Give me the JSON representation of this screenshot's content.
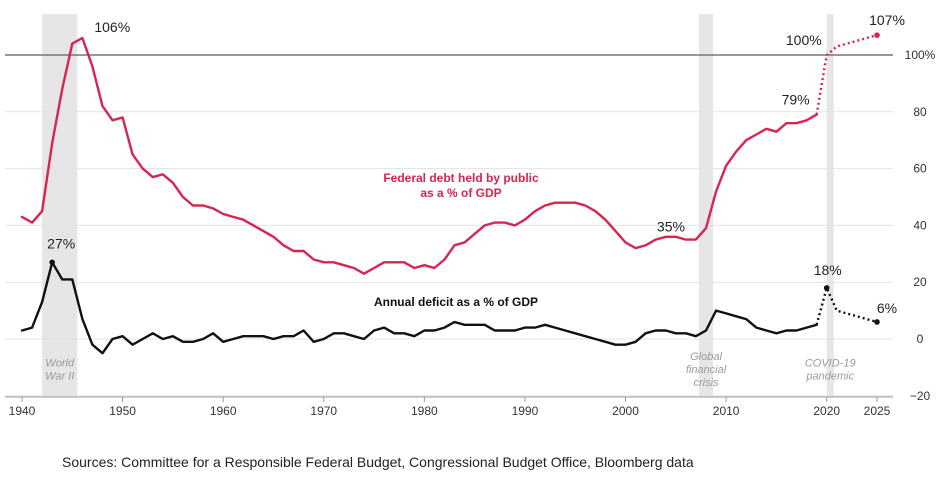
{
  "chart_data": {
    "type": "line",
    "x_range": [
      1940,
      2025
    ],
    "ylim": [
      -20,
      107
    ],
    "y_ticks": [
      -20,
      0,
      20,
      40,
      60,
      80,
      100
    ],
    "y_tick_labels": [
      "−20",
      "0",
      "20",
      "40",
      "60",
      "80",
      "100%"
    ],
    "x_ticks": [
      1940,
      1950,
      1960,
      1970,
      1980,
      1990,
      2000,
      2010,
      2020,
      2025
    ],
    "x_tick_labels": [
      "1940",
      "1950",
      "1960",
      "1970",
      "1980",
      "1990",
      "2000",
      "2010",
      "2020",
      "2025"
    ],
    "reference_line": 100,
    "shaded_periods": [
      {
        "start": 1942,
        "end": 1945.5,
        "label": [
          "World",
          "War II"
        ]
      },
      {
        "start": 2007.3,
        "end": 2008.7,
        "label": [
          "Global",
          "financial",
          "crisis"
        ]
      },
      {
        "start": 2020,
        "end": 2020.7,
        "label": [
          "COVID-19",
          "pandemic"
        ]
      }
    ],
    "series": [
      {
        "name": "Federal debt held by public as a % of GDP",
        "label_lines": [
          "Federal debt held by public",
          "as a % of GDP"
        ],
        "color": "#d6254f",
        "x": [
          1940,
          1941,
          1942,
          1943,
          1944,
          1945,
          1946,
          1947,
          1948,
          1949,
          1950,
          1951,
          1952,
          1953,
          1954,
          1955,
          1956,
          1957,
          1958,
          1959,
          1960,
          1961,
          1962,
          1963,
          1964,
          1965,
          1966,
          1967,
          1968,
          1969,
          1970,
          1971,
          1972,
          1973,
          1974,
          1975,
          1976,
          1977,
          1978,
          1979,
          1980,
          1981,
          1982,
          1983,
          1984,
          1985,
          1986,
          1987,
          1988,
          1989,
          1990,
          1991,
          1992,
          1993,
          1994,
          1995,
          1996,
          1997,
          1998,
          1999,
          2000,
          2001,
          2002,
          2003,
          2004,
          2005,
          2006,
          2007,
          2008,
          2009,
          2010,
          2011,
          2012,
          2013,
          2014,
          2015,
          2016,
          2017,
          2018,
          2019
        ],
        "values": [
          43,
          41,
          45,
          69,
          88,
          104,
          106,
          96,
          82,
          77,
          78,
          65,
          60,
          57,
          58,
          55,
          50,
          47,
          47,
          46,
          44,
          43,
          42,
          40,
          38,
          36,
          33,
          31,
          31,
          28,
          27,
          27,
          26,
          25,
          23,
          25,
          27,
          27,
          27,
          25,
          26,
          25,
          28,
          33,
          34,
          37,
          40,
          41,
          41,
          40,
          42,
          45,
          47,
          48,
          48,
          48,
          47,
          45,
          42,
          38,
          34,
          32,
          33,
          35,
          36,
          36,
          35,
          35,
          39,
          52,
          61,
          66,
          70,
          72,
          74,
          73,
          76,
          76,
          77,
          79
        ],
        "projection": {
          "x": [
            2019,
            2020,
            2021,
            2025
          ],
          "values": [
            79,
            100,
            103,
            107
          ]
        },
        "annotations": [
          {
            "x": 1946,
            "y": 106,
            "text": "106%"
          },
          {
            "x": 2007,
            "y": 35,
            "text": "35%"
          },
          {
            "x": 2019,
            "y": 79,
            "text": "79%"
          },
          {
            "x": 2020,
            "y": 100,
            "text": "100%"
          },
          {
            "x": 2025,
            "y": 107,
            "text": "107%"
          }
        ]
      },
      {
        "name": "Annual deficit as a % of GDP",
        "label_lines": [
          "Annual deficit as a % of GDP"
        ],
        "color": "#111111",
        "x": [
          1940,
          1941,
          1942,
          1943,
          1944,
          1945,
          1946,
          1947,
          1948,
          1949,
          1950,
          1951,
          1952,
          1953,
          1954,
          1955,
          1956,
          1957,
          1958,
          1959,
          1960,
          1961,
          1962,
          1963,
          1964,
          1965,
          1966,
          1967,
          1968,
          1969,
          1970,
          1971,
          1972,
          1973,
          1974,
          1975,
          1976,
          1977,
          1978,
          1979,
          1980,
          1981,
          1982,
          1983,
          1984,
          1985,
          1986,
          1987,
          1988,
          1989,
          1990,
          1991,
          1992,
          1993,
          1994,
          1995,
          1996,
          1997,
          1998,
          1999,
          2000,
          2001,
          2002,
          2003,
          2004,
          2005,
          2006,
          2007,
          2008,
          2009,
          2010,
          2011,
          2012,
          2013,
          2014,
          2015,
          2016,
          2017,
          2018,
          2019
        ],
        "values": [
          3,
          4,
          13,
          27,
          21,
          21,
          7,
          -2,
          -5,
          0,
          1,
          -2,
          0,
          2,
          0,
          1,
          -1,
          -1,
          0,
          2,
          -1,
          0,
          1,
          1,
          1,
          0,
          1,
          1,
          3,
          -1,
          0,
          2,
          2,
          1,
          0,
          3,
          4,
          2,
          2,
          1,
          3,
          3,
          4,
          6,
          5,
          5,
          5,
          3,
          3,
          3,
          4,
          4,
          5,
          4,
          3,
          2,
          1,
          0,
          -1,
          -2,
          -2,
          -1,
          2,
          3,
          3,
          2,
          2,
          1,
          3,
          10,
          9,
          8,
          7,
          4,
          3,
          2,
          3,
          3,
          4,
          5
        ],
        "projection": {
          "x": [
            2019,
            2020,
            2021,
            2025
          ],
          "values": [
            5,
            18,
            10,
            6
          ]
        },
        "annotations": [
          {
            "x": 1943,
            "y": 27,
            "text": "27%"
          },
          {
            "x": 2020,
            "y": 18,
            "text": "18%"
          },
          {
            "x": 2025,
            "y": 6,
            "text": "6%"
          }
        ]
      }
    ]
  },
  "source": "Sources: Committee for a Responsible Federal Budget, Congressional Budget Office, Bloomberg data"
}
